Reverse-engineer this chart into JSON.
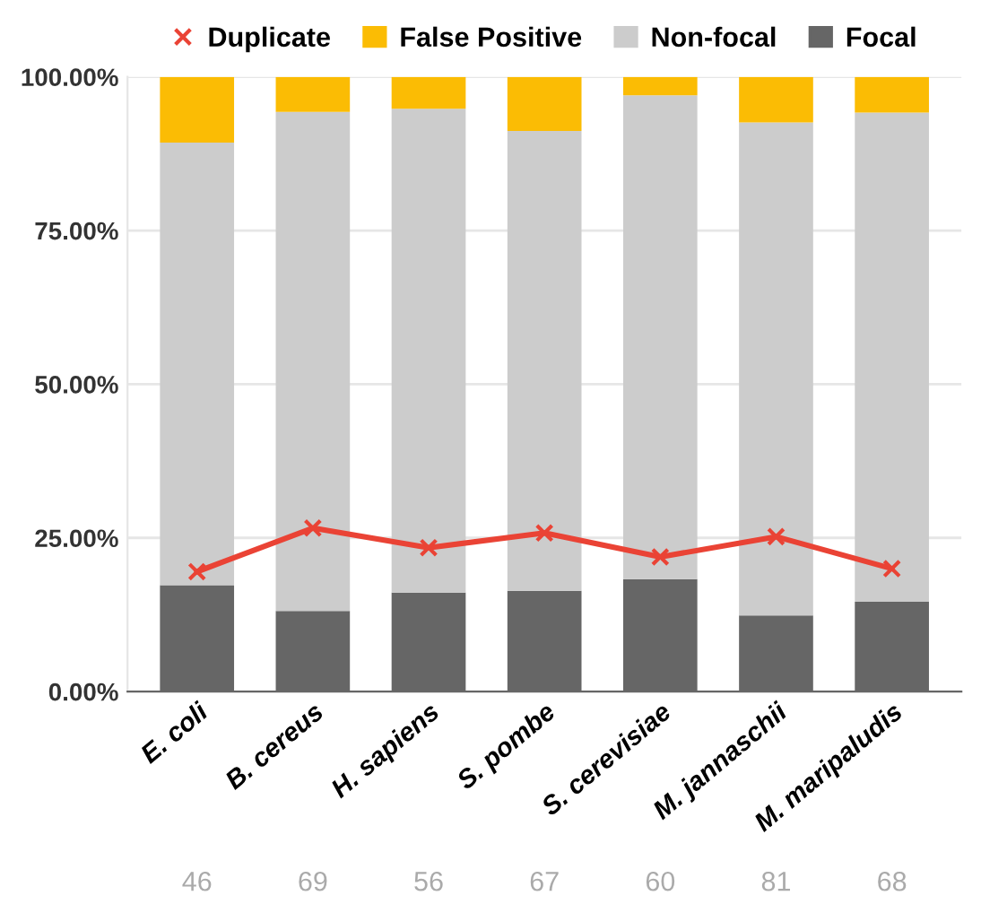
{
  "chart_data": {
    "type": "bar",
    "stacked": true,
    "categories": [
      "E. coli",
      "B. cereus",
      "H. sapiens",
      "S. pombe",
      "S. cerevisiae",
      "M. jannaschii",
      "M. maripaludis"
    ],
    "series": [
      {
        "name": "Focal",
        "color": "#666666",
        "values": [
          17.3,
          13.1,
          16.1,
          16.4,
          18.3,
          12.4,
          14.6
        ]
      },
      {
        "name": "Non-focal",
        "color": "#cccccc",
        "values": [
          72.0,
          81.2,
          78.7,
          74.8,
          78.7,
          80.2,
          79.6
        ]
      },
      {
        "name": "False Positive",
        "color": "#fbbc04",
        "values": [
          10.7,
          5.7,
          5.2,
          8.8,
          3.0,
          7.4,
          5.8
        ]
      },
      {
        "name": "Duplicate",
        "type": "line",
        "color": "#ea4335",
        "marker": "cross",
        "values": [
          19.5,
          26.6,
          23.4,
          25.8,
          21.9,
          25.2,
          20.0
        ]
      }
    ],
    "ylim": [
      0,
      100
    ],
    "yticks": [
      {
        "value": 0,
        "label": "0.00%"
      },
      {
        "value": 25,
        "label": "25.00%"
      },
      {
        "value": 50,
        "label": "50.00%"
      },
      {
        "value": 75,
        "label": "75.00%"
      },
      {
        "value": 100,
        "label": "100.00%"
      }
    ],
    "grid": "y",
    "legend": "top",
    "annotations": [
      "46",
      "69",
      "56",
      "67",
      "60",
      "81",
      "68"
    ]
  }
}
